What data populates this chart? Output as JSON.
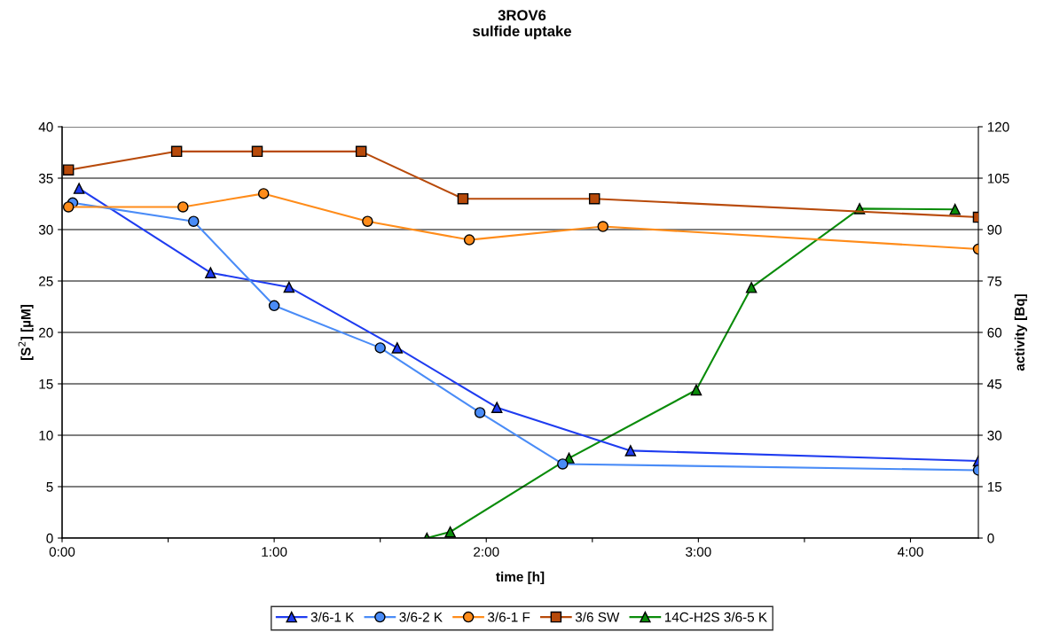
{
  "chart_data": {
    "type": "line",
    "title": "3ROV6\nsulfide uptake",
    "xlabel": "time [h]",
    "ylabel": "[S$^{2}$] [µM]",
    "y2label": "activity [Bq]",
    "xlim": [
      0,
      4.32
    ],
    "xticks": [
      {
        "value": 0,
        "label": "0:00"
      },
      {
        "value": 0.5,
        "label": null
      },
      {
        "value": 1,
        "label": "1:00"
      },
      {
        "value": 1.5,
        "label": null
      },
      {
        "value": 2,
        "label": "2:00"
      },
      {
        "value": 2.5,
        "label": null
      },
      {
        "value": 3,
        "label": "3:00"
      },
      {
        "value": 3.5,
        "label": null
      },
      {
        "value": 4,
        "label": "4:00"
      }
    ],
    "ylim": [
      0,
      40
    ],
    "yticks": [
      0,
      5,
      10,
      15,
      20,
      25,
      30,
      35,
      40
    ],
    "y2lim": [
      0,
      120
    ],
    "y2ticks": [
      0,
      15,
      30,
      45,
      60,
      75,
      90,
      105,
      120
    ],
    "grid": "y",
    "legend": "bottom",
    "series": [
      {
        "name": "3/6-1 K",
        "color": "#1f3cf0",
        "marker": "triangle",
        "x": [
          0.08,
          0.7,
          1.07,
          1.58,
          2.05,
          2.68,
          4.32
        ],
        "values": [
          34.0,
          25.8,
          24.4,
          18.5,
          12.7,
          8.5,
          7.5
        ]
      },
      {
        "name": "3/6-2 K",
        "color": "#4a8cf7",
        "marker": "circle",
        "x": [
          0.05,
          0.62,
          1.0,
          1.5,
          1.97,
          2.36,
          4.32
        ],
        "values": [
          32.6,
          30.8,
          22.6,
          18.5,
          12.2,
          7.2,
          6.6
        ]
      },
      {
        "name": "3/6-1 F",
        "color": "#ff8c1a",
        "marker": "circle",
        "x": [
          0.03,
          0.57,
          0.95,
          1.44,
          1.92,
          2.55,
          4.32
        ],
        "values": [
          32.2,
          32.2,
          33.5,
          30.8,
          29.0,
          30.3,
          28.1
        ]
      },
      {
        "name": "3/6 SW",
        "color": "#b84a0a",
        "marker": "square",
        "x": [
          0.03,
          0.54,
          0.92,
          1.41,
          1.89,
          2.51,
          4.32
        ],
        "values": [
          35.8,
          37.6,
          37.6,
          37.6,
          33.0,
          33.0,
          31.2
        ]
      },
      {
        "name": "14C-H2S 3/6-5 K",
        "color": "#0a8c0a",
        "marker": "triangle",
        "axis": "y2",
        "x": [
          1.72,
          1.83,
          2.39,
          2.99,
          3.25,
          3.76,
          4.21
        ],
        "values": [
          0,
          1.8,
          23.3,
          43.2,
          73.1,
          96.1,
          95.9
        ]
      }
    ]
  }
}
